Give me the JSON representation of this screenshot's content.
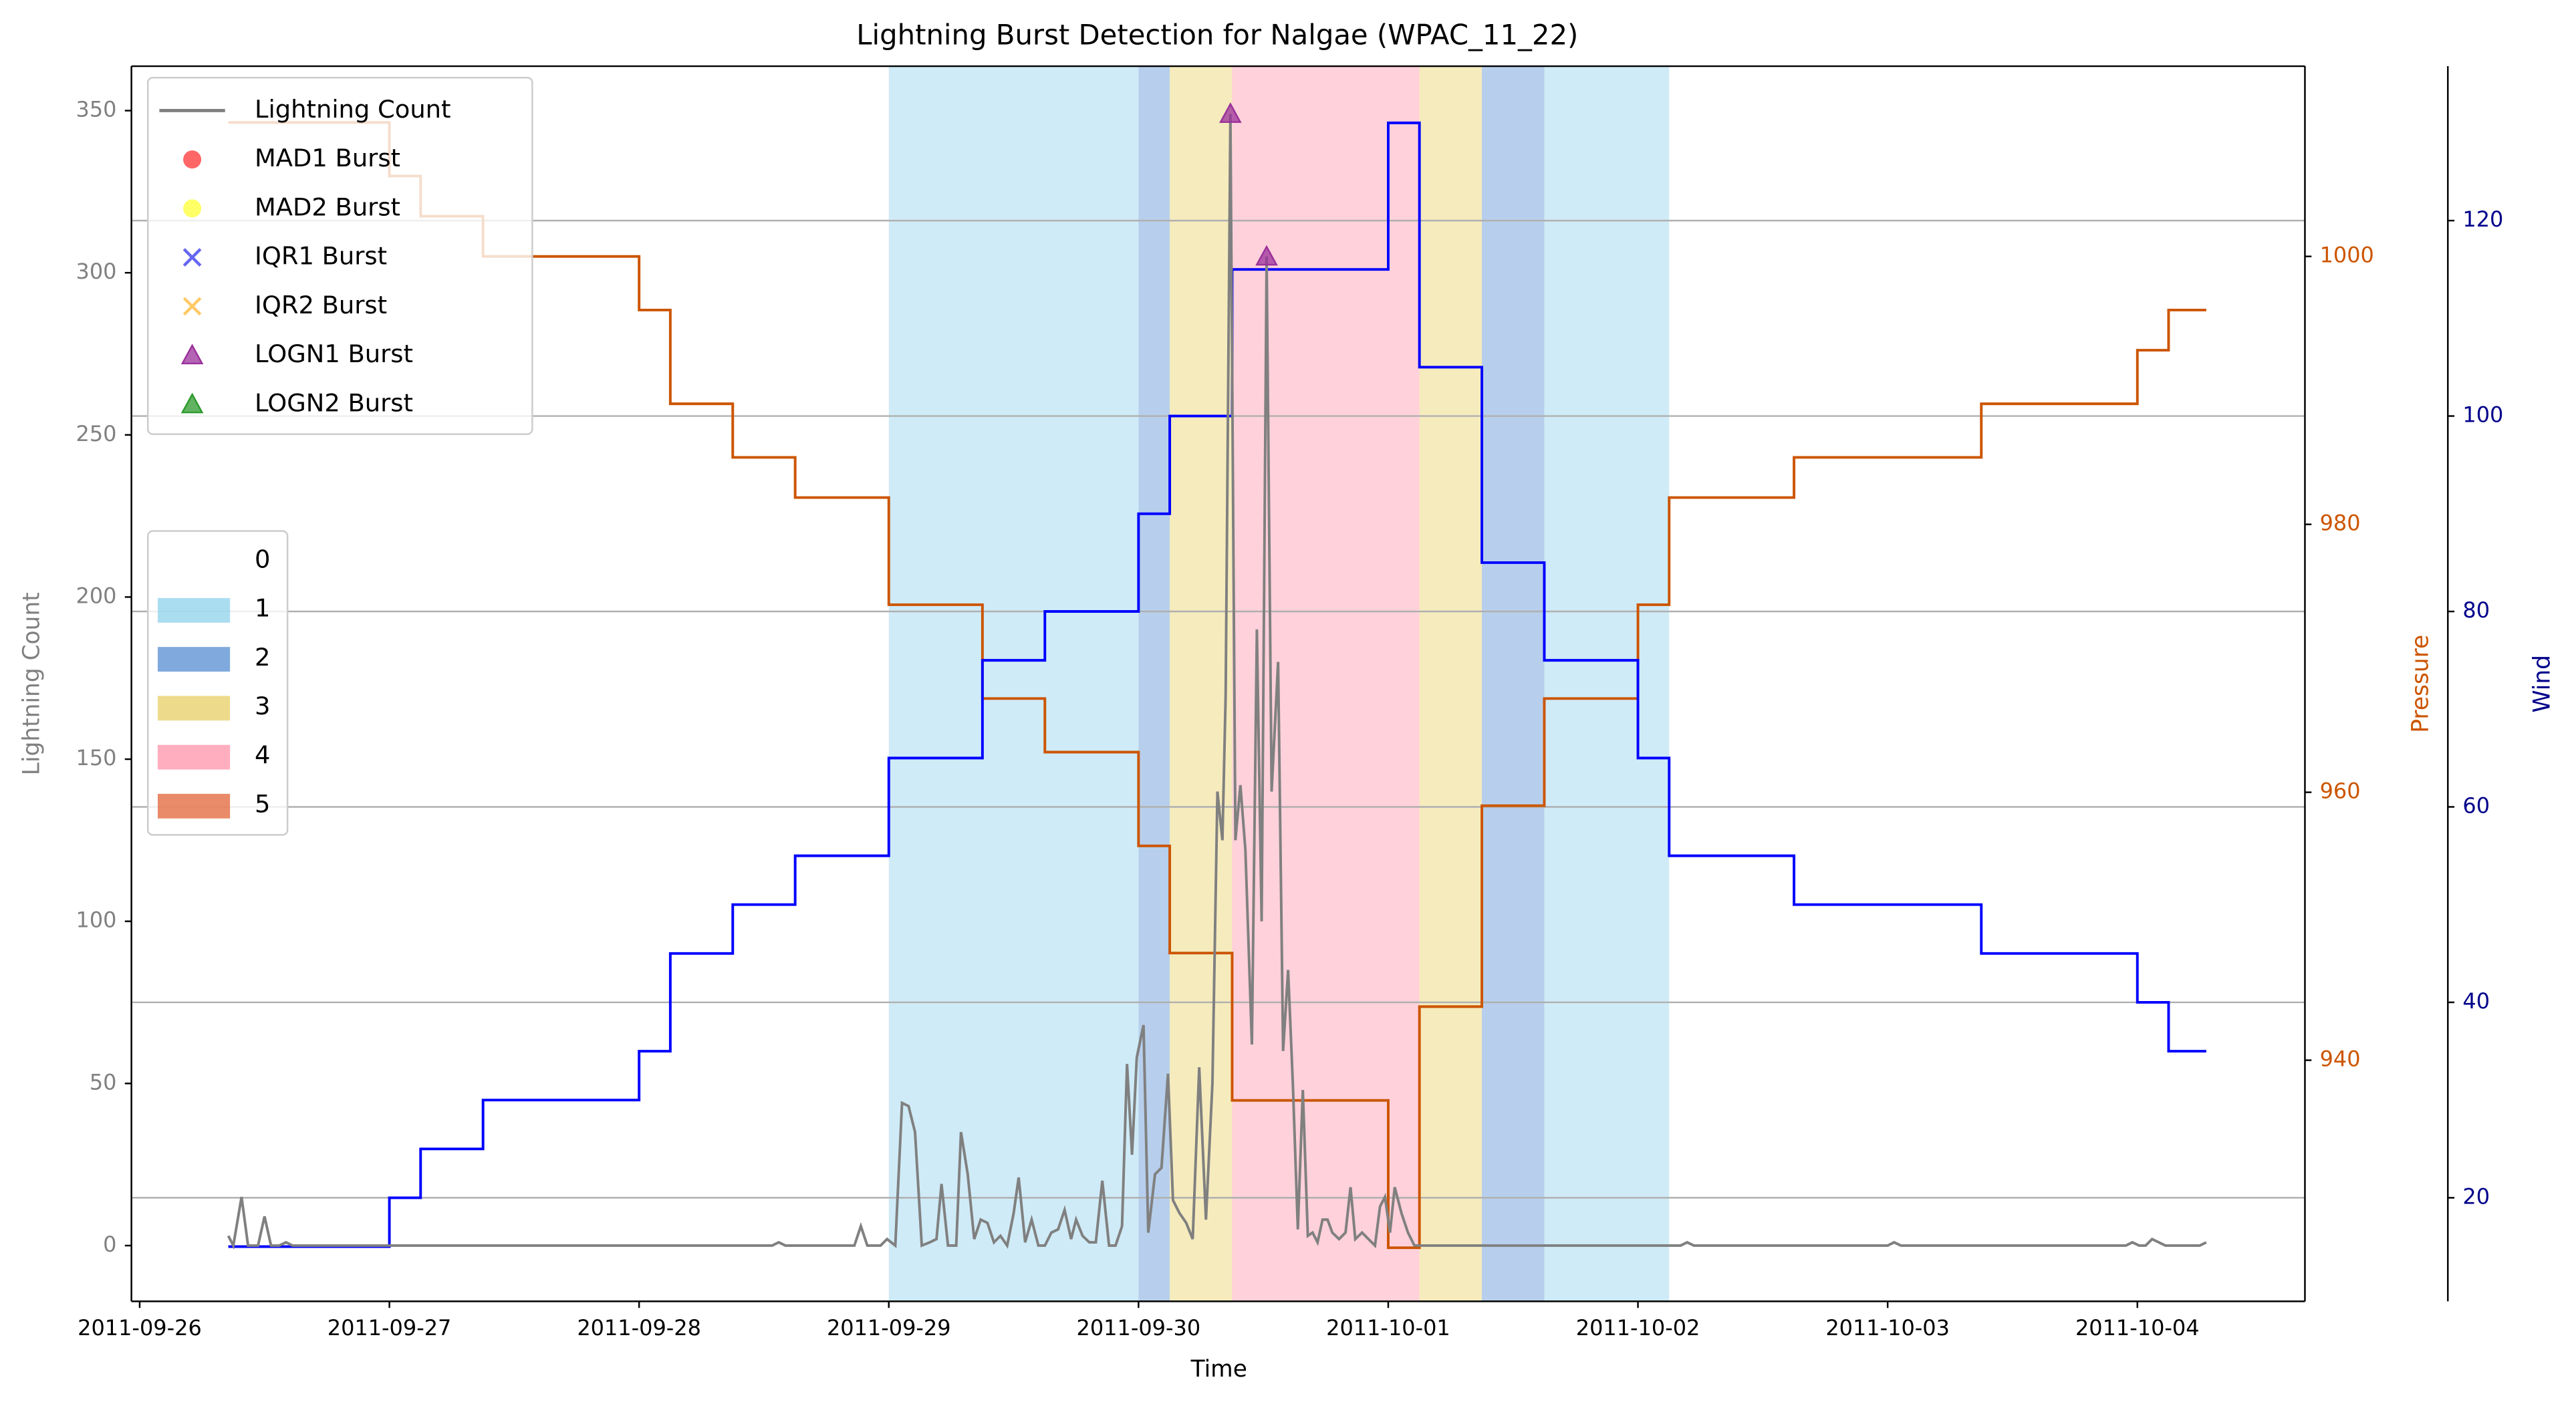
{
  "chart_data": {
    "type": "line",
    "title": "Lightning Burst Detection for Nalgae (WPAC_11_22)",
    "xlabel": "Time",
    "ylabel": "Lightning Count",
    "y2label": "Pressure",
    "y3label": "Wind",
    "ycolor": "gray",
    "y2color": "#cc5500",
    "y3color": "darkblue",
    "xlim": [
      15242.967,
      15251.671
    ],
    "xticks": [
      {
        "value": 15243,
        "label": "2011-09-26"
      },
      {
        "value": 15244,
        "label": "2011-09-27"
      },
      {
        "value": 15245,
        "label": "2011-09-28"
      },
      {
        "value": 15246,
        "label": "2011-09-29"
      },
      {
        "value": 15247,
        "label": "2011-09-30"
      },
      {
        "value": 15248,
        "label": "2011-10-01"
      },
      {
        "value": 15249,
        "label": "2011-10-02"
      },
      {
        "value": 15250,
        "label": "2011-10-03"
      },
      {
        "value": 15251,
        "label": "2011-10-04"
      }
    ],
    "ylim": [
      -17.2,
      363.7
    ],
    "yticks": [
      0,
      50,
      100,
      150,
      200,
      250,
      300,
      350
    ],
    "y2lim": [
      922.0,
      1014.2
    ],
    "y2ticks": [
      940,
      960,
      980,
      1000
    ],
    "y3lim": [
      9.4,
      135.8
    ],
    "y3ticks": [
      20,
      40,
      60,
      80,
      100,
      120
    ],
    "grid": "y3",
    "bands": {
      "alpha": 0.4,
      "legend": [
        {
          "name": "0",
          "color": "none"
        },
        {
          "name": "1",
          "color": "#87ceeb"
        },
        {
          "name": "2",
          "color": "#4a86cf"
        },
        {
          "name": "3",
          "color": "#e6cc5a"
        },
        {
          "name": "4",
          "color": "#ff8ca5"
        },
        {
          "name": "5",
          "color": "#e05a2a"
        }
      ],
      "spans": [
        {
          "x0": 15246,
          "x1": 15247,
          "level": 1
        },
        {
          "x0": 15247,
          "x1": 15247.125,
          "level": 2
        },
        {
          "x0": 15247.125,
          "x1": 15247.375,
          "level": 3
        },
        {
          "x0": 15247.375,
          "x1": 15248.125,
          "level": 4
        },
        {
          "x0": 15248.125,
          "x1": 15248.375,
          "level": 3
        },
        {
          "x0": 15248.375,
          "x1": 15248.625,
          "level": 2
        },
        {
          "x0": 15248.625,
          "x1": 15249.125,
          "level": 1
        }
      ]
    },
    "series": [
      {
        "name": "Pressure",
        "axis": "y2",
        "color": "#cc5500",
        "drawstyle": "steps-post",
        "x": [
          15243.355,
          15244,
          15244.125,
          15244.375,
          15245,
          15245.125,
          15245.375,
          15245.625,
          15246,
          15246.375,
          15246.625,
          15247,
          15247.125,
          15247.375,
          15248,
          15248.125,
          15248.375,
          15248.625,
          15249,
          15249.125,
          15249.625,
          15250.375,
          15251,
          15251.125,
          15251.276
        ],
        "values": [
          1010,
          1006,
          1003,
          1000,
          996,
          989,
          985,
          982,
          974,
          967,
          963,
          956,
          948,
          937,
          926,
          944,
          959,
          967,
          974,
          982,
          985,
          989,
          993,
          996,
          996
        ]
      },
      {
        "name": "Wind",
        "axis": "y3",
        "color": "#0000ff",
        "drawstyle": "steps-post",
        "x": [
          15243.355,
          15244,
          15244.125,
          15244.375,
          15245,
          15245.125,
          15245.375,
          15245.625,
          15246,
          15246.375,
          15246.625,
          15247,
          15247.125,
          15247.375,
          15248,
          15248.125,
          15248.375,
          15248.625,
          15249,
          15249.125,
          15249.625,
          15250.375,
          15251,
          15251.125,
          15251.276
        ],
        "values": [
          15,
          20,
          25,
          30,
          35,
          45,
          50,
          55,
          65,
          75,
          80,
          90,
          100,
          115,
          130,
          105,
          85,
          75,
          65,
          55,
          50,
          45,
          40,
          35,
          35
        ]
      },
      {
        "name": "Lightning Count",
        "color": "#808080",
        "x": [
          15243.355,
          15243.375,
          15243.408,
          15243.434,
          15243.474,
          15243.5,
          15243.526,
          15243.559,
          15243.586,
          15243.612,
          15245.533,
          15245.559,
          15245.586,
          15245.862,
          15245.888,
          15245.914,
          15245.967,
          15245.993,
          15246.026,
          15246.053,
          15246.079,
          15246.105,
          15246.132,
          15246.164,
          15246.191,
          15246.211,
          15246.237,
          15246.27,
          15246.289,
          15246.316,
          15246.342,
          15246.368,
          15246.395,
          15246.421,
          15246.447,
          15246.474,
          15246.5,
          15246.52,
          15246.546,
          15246.572,
          15246.599,
          15246.625,
          15246.651,
          15246.678,
          15246.704,
          15246.73,
          15246.75,
          15246.776,
          15246.803,
          15246.829,
          15246.855,
          15246.882,
          15246.908,
          15246.934,
          15246.954,
          15246.974,
          15246.993,
          15247.02,
          15247.039,
          15247.066,
          15247.092,
          15247.118,
          15247.138,
          15247.164,
          15247.191,
          15247.217,
          15247.243,
          15247.27,
          15247.296,
          15247.316,
          15247.336,
          15247.349,
          15247.368,
          15247.388,
          15247.408,
          15247.428,
          15247.454,
          15247.474,
          15247.493,
          15247.513,
          15247.533,
          15247.559,
          15247.579,
          15247.599,
          15247.618,
          15247.638,
          15247.658,
          15247.678,
          15247.697,
          15247.717,
          15247.737,
          15247.757,
          15247.776,
          15247.803,
          15247.829,
          15247.849,
          15247.868,
          15247.895,
          15247.921,
          15247.947,
          15247.967,
          15247.987,
          15248.007,
          15248.026,
          15248.053,
          15248.079,
          15248.105,
          15249.171,
          15249.197,
          15249.224,
          15250,
          15250.026,
          15250.053,
          15250.954,
          15250.98,
          15251.007,
          15251.033,
          15251.059,
          15251.086,
          15251.112,
          15251.25,
          15251.276
        ],
        "values": [
          3,
          0,
          15,
          0,
          0,
          9,
          0,
          0,
          1,
          0,
          0,
          1,
          0,
          0,
          6,
          0,
          0,
          2,
          0,
          44,
          43,
          35,
          0,
          1,
          2,
          19,
          0,
          0,
          35,
          22,
          2,
          8,
          7,
          1,
          3,
          0,
          10,
          21,
          1,
          8,
          0,
          0,
          4,
          5,
          11,
          2,
          8,
          3,
          1,
          1,
          20,
          0,
          0,
          6,
          56,
          28,
          58,
          68,
          4,
          22,
          24,
          53,
          14,
          10,
          7,
          2,
          55,
          8,
          50,
          140,
          125,
          170,
          349,
          125,
          142,
          122,
          62,
          190,
          100,
          305,
          140,
          180,
          60,
          85,
          50,
          5,
          48,
          3,
          4,
          1,
          8,
          8,
          4,
          2,
          4,
          18,
          2,
          4,
          2,
          0,
          12,
          15,
          4,
          18,
          10,
          4,
          0,
          0,
          1,
          0,
          0,
          1,
          0,
          0,
          1,
          0,
          0,
          2,
          1,
          0,
          0,
          1
        ]
      }
    ],
    "bursts": [
      {
        "name": "MAD1 Burst",
        "color": "#ff3333",
        "marker": "o",
        "x": [],
        "values": []
      },
      {
        "name": "MAD2 Burst",
        "color": "#ffff33",
        "marker": "o",
        "x": [],
        "values": []
      },
      {
        "name": "IQR1 Burst",
        "color": "#3333ee",
        "marker": "x",
        "x": [],
        "values": []
      },
      {
        "name": "IQR2 Burst",
        "color": "#ffb733",
        "marker": "x",
        "x": [],
        "values": []
      },
      {
        "name": "LOGN1 Burst",
        "color": "#9b309b",
        "marker": "^",
        "x": [
          15247.368,
          15247.513
        ],
        "values": [
          349,
          305
        ]
      },
      {
        "name": "LOGN2 Burst",
        "color": "#2c9a2c",
        "marker": "^",
        "x": [],
        "values": []
      }
    ]
  }
}
